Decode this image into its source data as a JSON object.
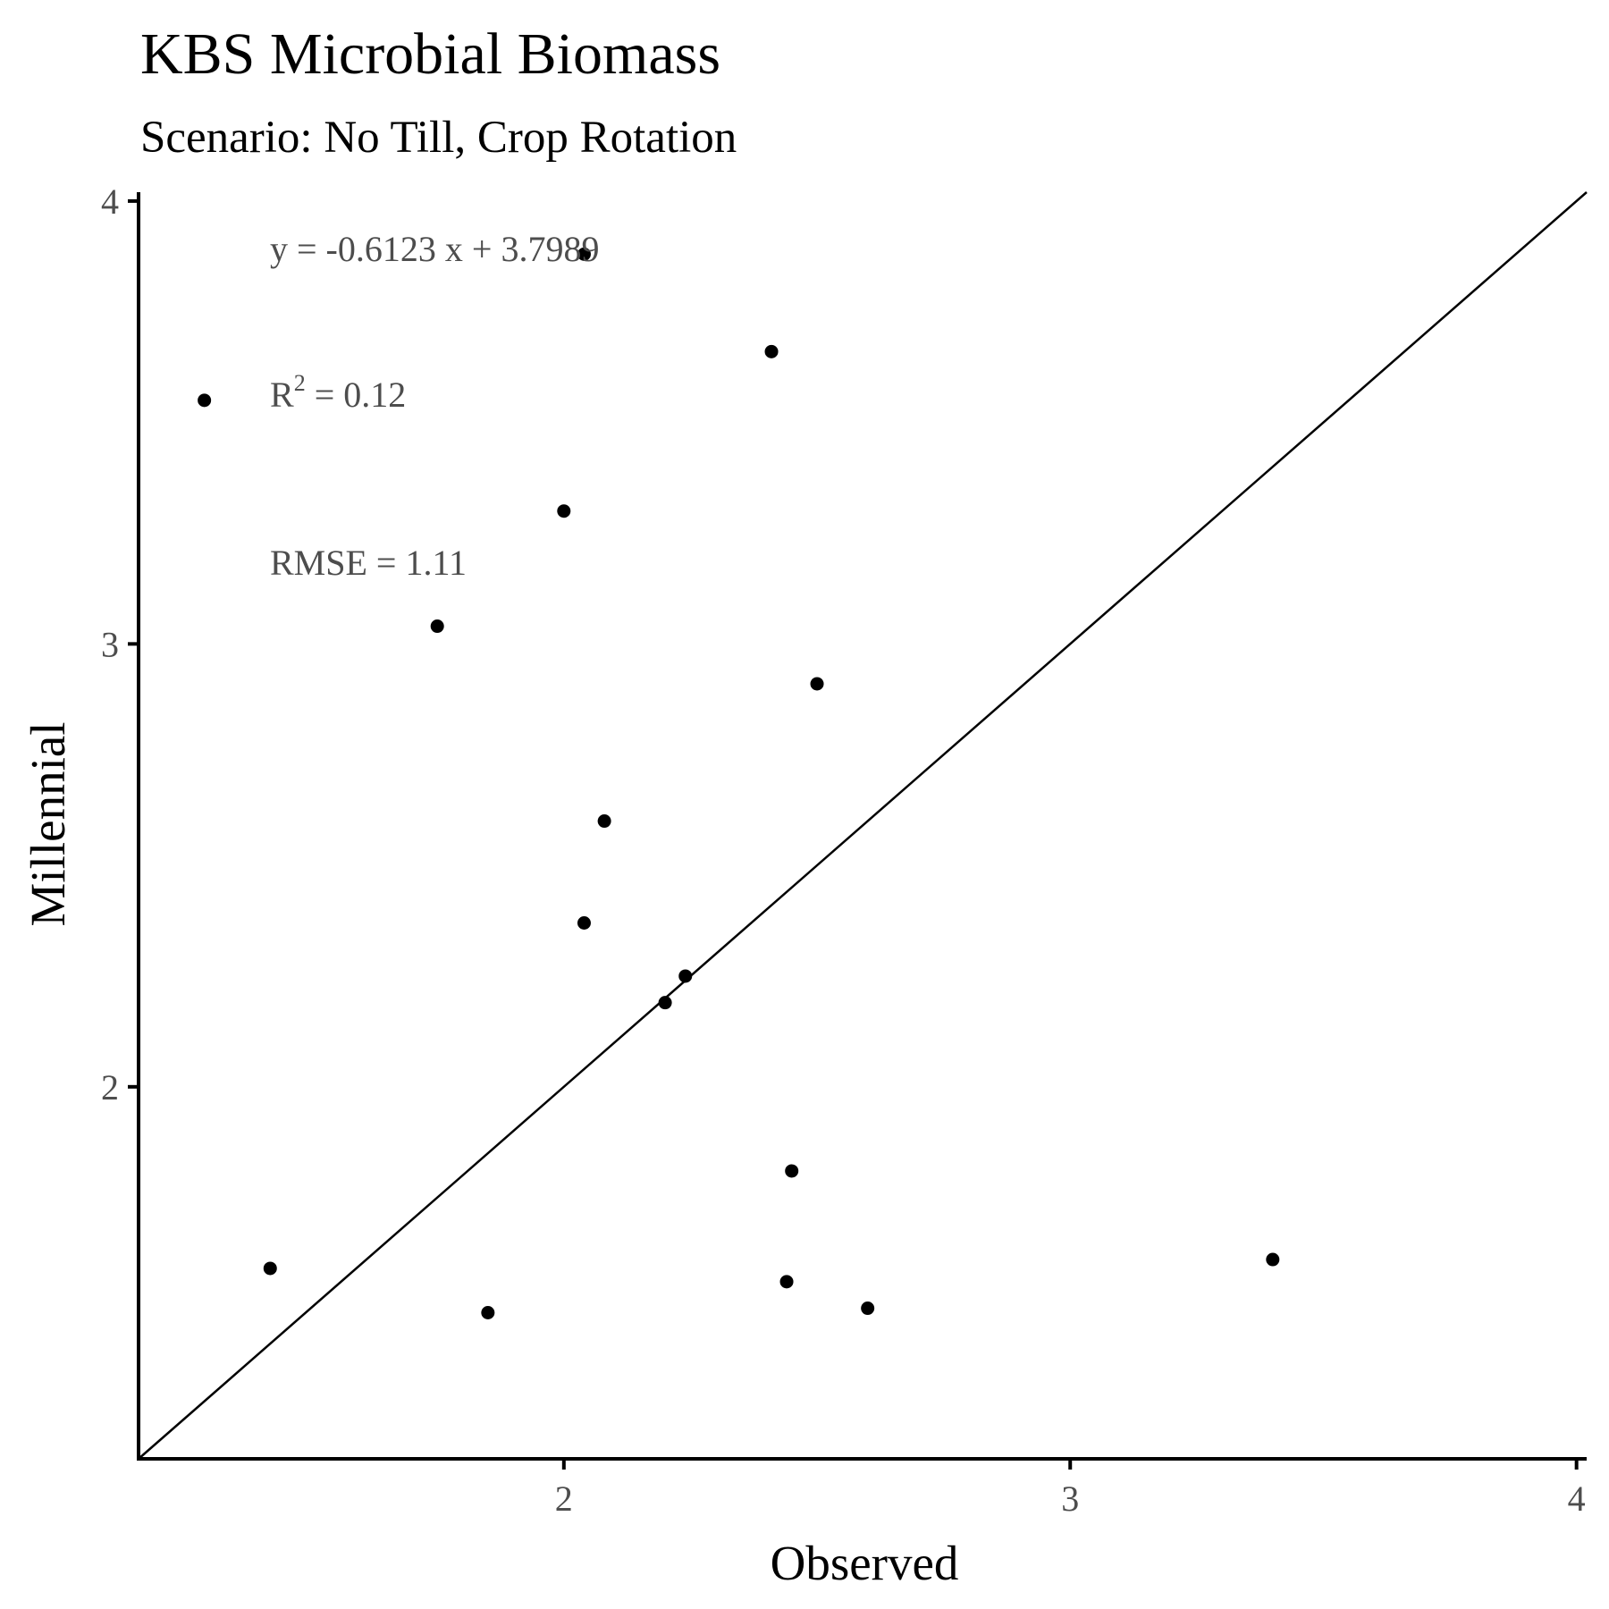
{
  "chart_data": {
    "type": "scatter",
    "title": "KBS Microbial Biomass",
    "subtitle": "Scenario: No Till, Crop Rotation",
    "xlabel": "Observed",
    "ylabel": "Millennial",
    "xlim": [
      1.16,
      4.02
    ],
    "ylim": [
      1.16,
      4.02
    ],
    "xticks": [
      "2",
      "3",
      "4"
    ],
    "yticks": [
      "2",
      "3",
      "4"
    ],
    "x": [
      2.04,
      2.41,
      2.0,
      1.75,
      2.5,
      2.08,
      2.04,
      2.24,
      2.2,
      2.45,
      1.42,
      1.85,
      2.44,
      2.6,
      3.4,
      1.29
    ],
    "y": [
      3.88,
      3.66,
      3.3,
      3.04,
      2.91,
      2.6,
      2.37,
      2.25,
      2.19,
      1.81,
      1.59,
      1.49,
      1.56,
      1.5,
      1.61,
      3.55
    ],
    "reference_line": "1:1",
    "annotations": {
      "equation": "y = -0.6123 x + 3.7989",
      "r2_prefix": "R",
      "r2_sup": "2",
      "r2_value": " = 0.12",
      "rmse": "RMSE = 1.11"
    },
    "grid": false,
    "legend": "none",
    "colors": {
      "points": "#000000",
      "line": "#000000",
      "annotation": "#4d4d4d",
      "tick": "#4d4d4d"
    }
  }
}
